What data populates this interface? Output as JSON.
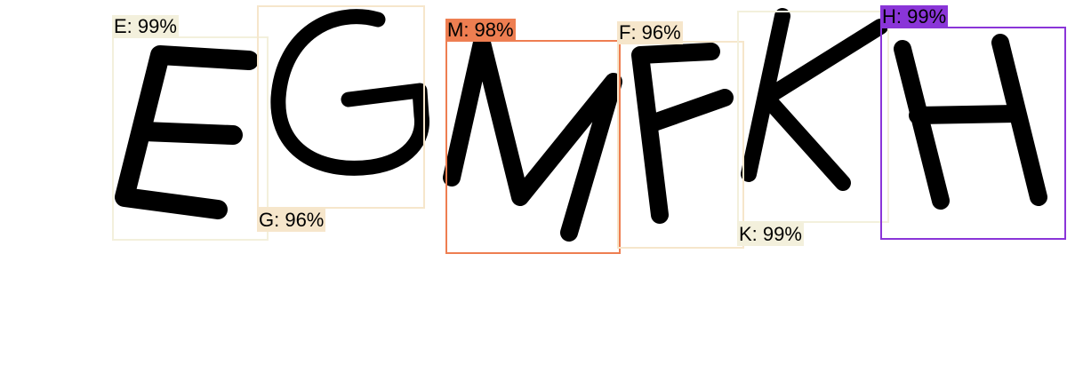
{
  "detections": [
    {
      "letter": "E",
      "label": "E: 99%",
      "color": "#f3f0dc"
    },
    {
      "letter": "G",
      "label": "G: 96%",
      "color": "#f6e6cb"
    },
    {
      "letter": "M",
      "label": "M: 98%",
      "color": "#ee7e51"
    },
    {
      "letter": "F",
      "label": "F: 96%",
      "color": "#f6e6cb"
    },
    {
      "letter": "K",
      "label": "K: 99%",
      "color": "#f3f0dc"
    },
    {
      "letter": "H",
      "label": "H: 99%",
      "color": "#8a35d8"
    }
  ]
}
